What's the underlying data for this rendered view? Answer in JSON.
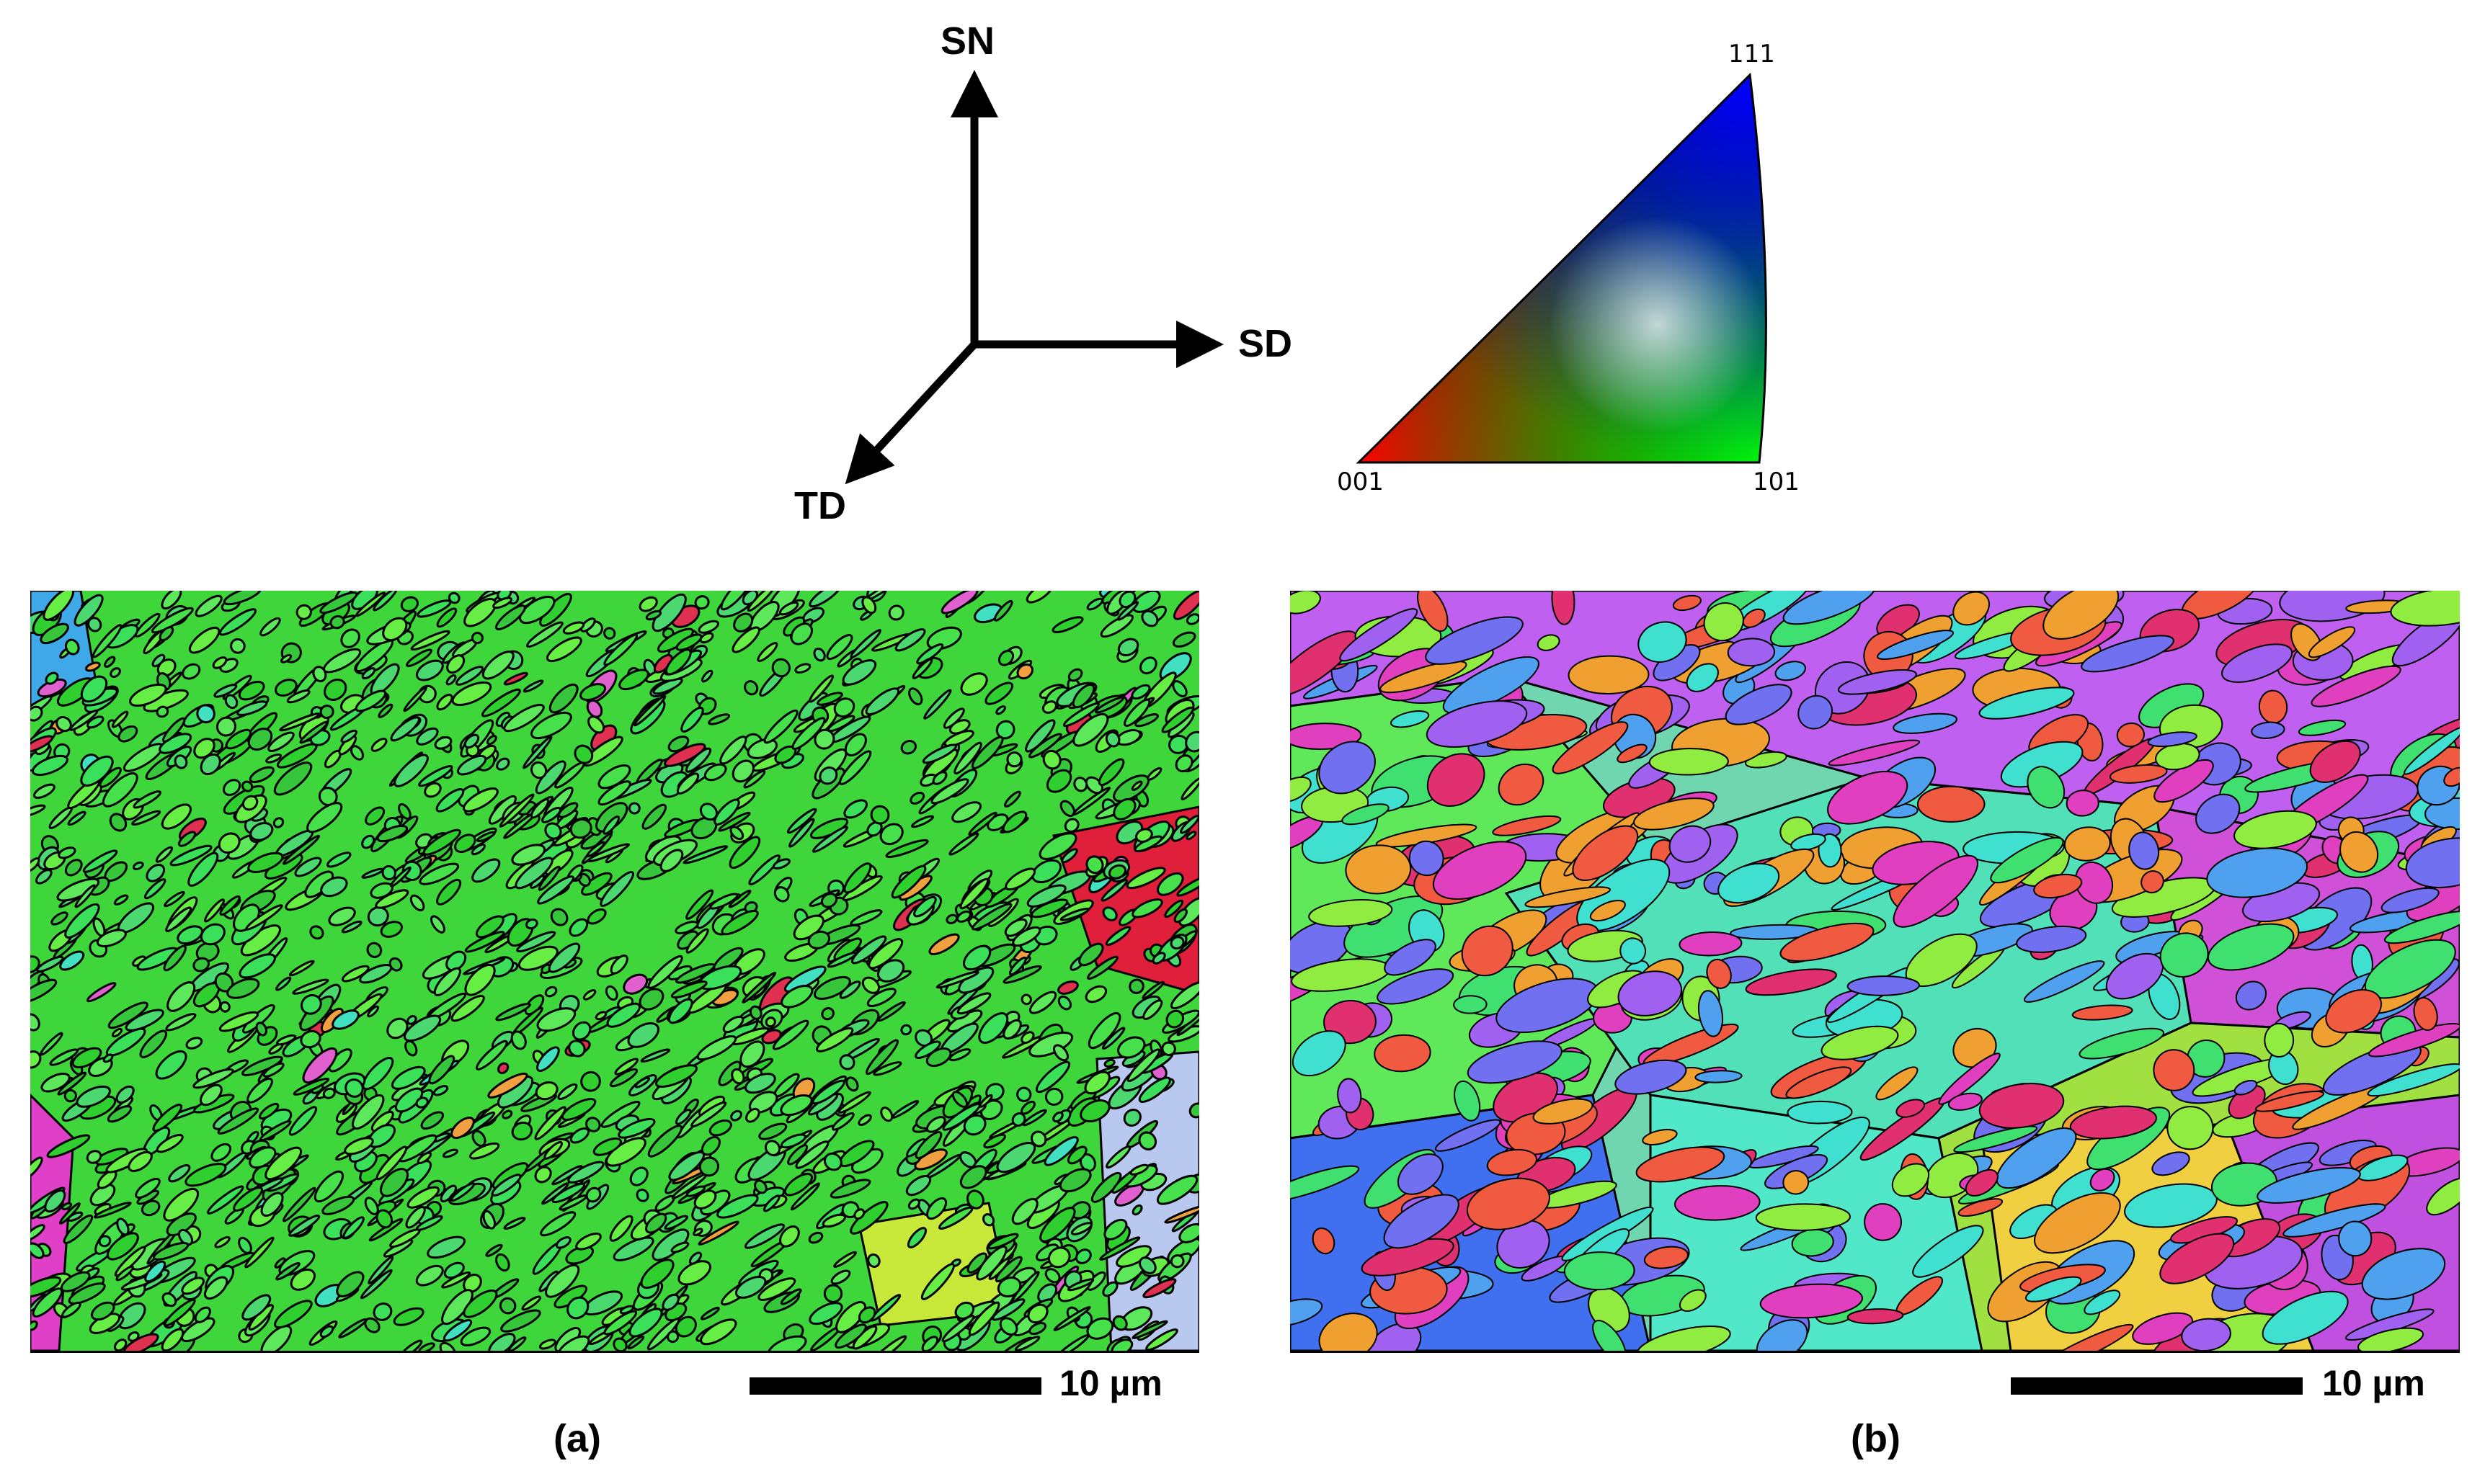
{
  "axes": {
    "normal": "SN",
    "sliding": "SD",
    "transverse": "TD"
  },
  "ipf_key": {
    "corner_111": "111",
    "corner_001": "001",
    "corner_101": "101"
  },
  "panel_a": {
    "caption": "(a)",
    "scale_label": "10 µm"
  },
  "panel_b": {
    "caption": "(b)",
    "scale_label": "10 µm"
  }
}
